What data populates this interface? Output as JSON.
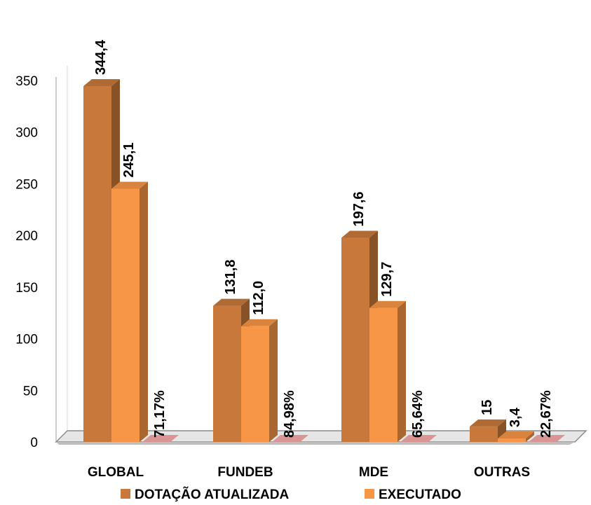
{
  "chart_data": {
    "type": "bar",
    "style": "3d-clustered-column",
    "categories": [
      "GLOBAL",
      "FUNDEB",
      "MDE",
      "OUTRAS"
    ],
    "series": [
      {
        "name": "DOTAÇÃO ATUALIZADA",
        "color": "#c8783a",
        "values": [
          344.4,
          131.8,
          197.6,
          15
        ],
        "labels": [
          "344,4",
          "131,8",
          "197,6",
          "15"
        ]
      },
      {
        "name": "EXECUTADO",
        "color": "#f79646",
        "values": [
          245.1,
          112.0,
          129.7,
          3.4
        ],
        "labels": [
          "245,1",
          "112,0",
          "129,7",
          "3,4"
        ]
      }
    ],
    "percentages": {
      "values": [
        71.17,
        84.98,
        65.64,
        22.67
      ],
      "labels": [
        "71,17%",
        "84,98%",
        "65,64%",
        "22,67%"
      ],
      "color": "#d99594"
    },
    "ylim": [
      0,
      350
    ],
    "yticks": [
      0,
      50,
      100,
      150,
      200,
      250,
      300,
      350
    ],
    "title": "",
    "xlabel": "",
    "ylabel": "",
    "grid": false,
    "legend": "bottom"
  }
}
